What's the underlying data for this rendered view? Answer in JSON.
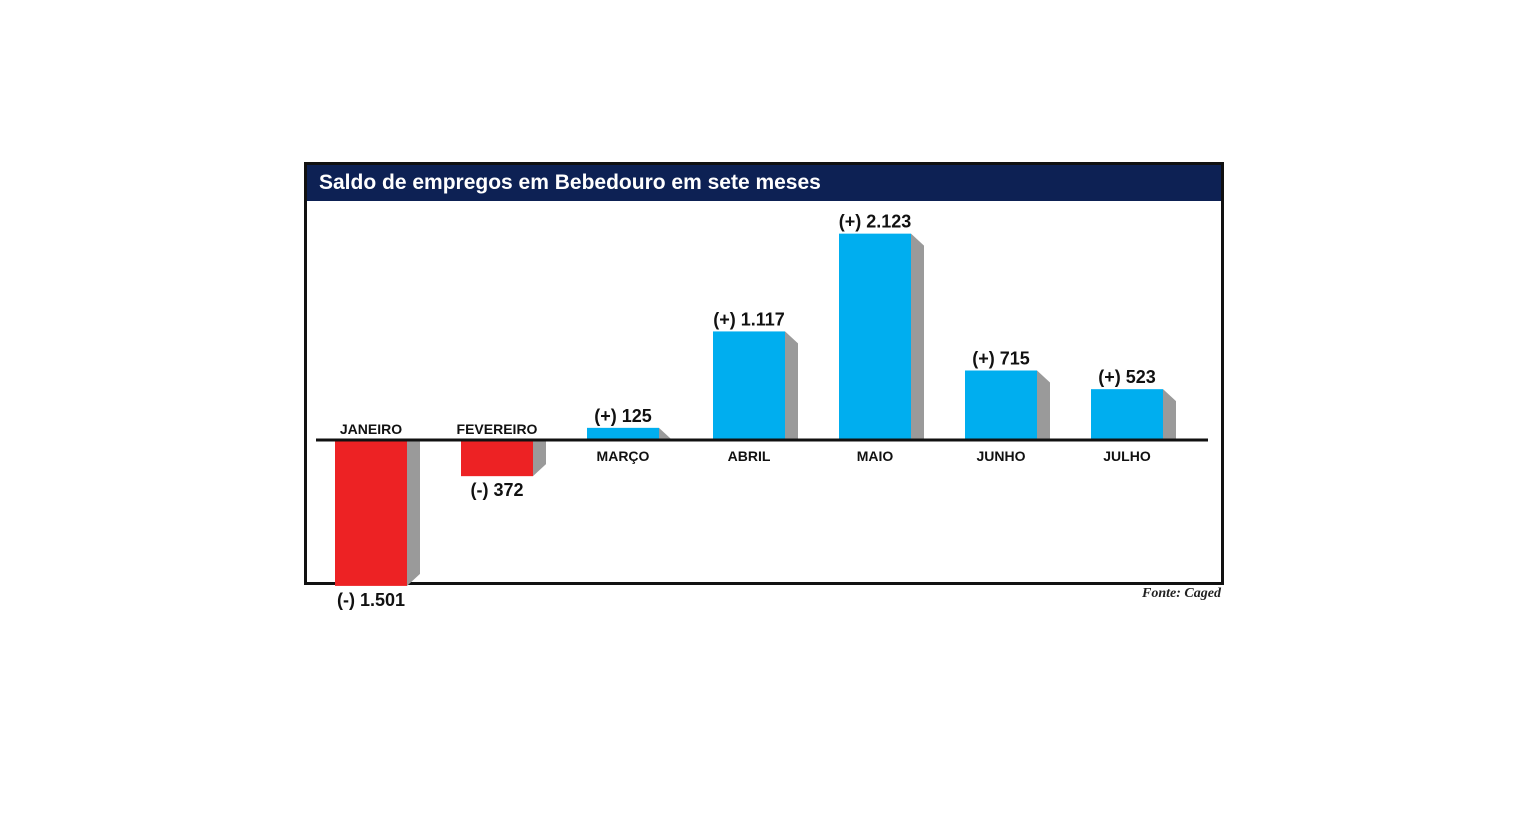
{
  "chart_data": {
    "type": "bar",
    "title": "Saldo de empregos em Bebedouro em sete meses",
    "source": "Fonte: Caged",
    "categories": [
      "JANEIRO",
      "FEVEREIRO",
      "MARÇO",
      "ABRIL",
      "MAIO",
      "JUNHO",
      "JULHO"
    ],
    "values": [
      -1501,
      -372,
      125,
      1117,
      2123,
      715,
      523
    ],
    "value_labels": [
      "(-) 1.501",
      "(-) 372",
      "(+) 125",
      "(+) 1.117",
      "(+) 2.123",
      "(+) 715",
      "(+) 523"
    ],
    "xlabel": "",
    "ylabel": "",
    "grid": false,
    "legend": "none",
    "colors": {
      "positive": "#00aeef",
      "negative": "#ed2224",
      "shadow": "#9a9a9a",
      "header": "#0d2154",
      "baseline": "#111111"
    }
  }
}
